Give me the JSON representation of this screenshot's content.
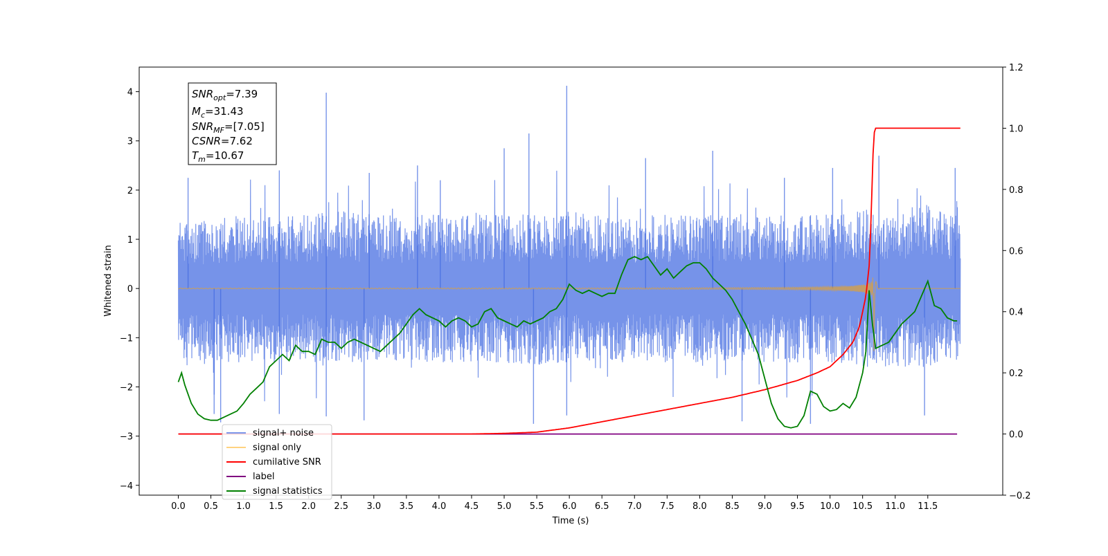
{
  "chart_data": {
    "type": "line",
    "xlabel": "Time (s)",
    "ylabel": "Whitened strain",
    "xlim": [
      -0.6,
      12.65
    ],
    "ylim": [
      -4.2,
      4.5
    ],
    "y2lim": [
      -0.2,
      1.2
    ],
    "x_ticks": [
      "0.0",
      "0.5",
      "1.0",
      "1.5",
      "2.0",
      "2.5",
      "3.0",
      "3.5",
      "4.0",
      "4.5",
      "5.0",
      "5.5",
      "6.0",
      "6.5",
      "7.0",
      "7.5",
      "8.0",
      "8.5",
      "9.0",
      "9.5",
      "10.0",
      "10.5",
      "11.0",
      "11.5"
    ],
    "y_ticks": [
      "4",
      "3",
      "2",
      "1",
      "0",
      "−1",
      "−2",
      "−3",
      "−4"
    ],
    "y2_ticks": [
      "1.2",
      "1.0",
      "0.8",
      "0.6",
      "0.4",
      "0.2",
      "0.0",
      "−0.2"
    ],
    "legend_position": "lower-left",
    "annotation": {
      "snr_opt": {
        "base": "SNR",
        "sub": "opt",
        "value": "=7.39"
      },
      "mc": {
        "base": "M",
        "sub": "c",
        "value": "=31.43"
      },
      "snr_mf": {
        "base": "SNR",
        "sub": "MF",
        "value": "=[7.05]"
      },
      "csnr": {
        "base": "CSNR",
        "value": "=7.62"
      },
      "tm": {
        "base": "T",
        "sub": "m",
        "value": "=10.67"
      }
    },
    "series": [
      {
        "name": "signal+ noise",
        "color": "#4169e1",
        "axis": "left",
        "x_range": [
          0.0,
          12.0
        ],
        "envelope_upper": [
          1.4,
          1.4,
          1.5,
          1.5,
          1.5,
          1.6,
          1.5,
          1.5,
          1.5,
          1.5,
          1.5,
          1.6,
          1.6,
          1.5,
          1.5,
          1.5,
          1.5,
          1.5,
          1.5,
          1.5,
          1.5,
          1.6,
          1.6,
          1.7,
          1.5
        ],
        "envelope_lower": [
          -1.4,
          -1.5,
          -1.5,
          -1.5,
          -1.5,
          -1.5,
          -1.5,
          -1.5,
          -1.5,
          -1.5,
          -1.5,
          -1.6,
          -1.5,
          -1.5,
          -1.5,
          -1.5,
          -1.5,
          -1.5,
          -1.5,
          -1.5,
          -1.5,
          -1.6,
          -1.6,
          -1.6,
          -1.5
        ],
        "peaks": [
          [
            0.15,
            2.25
          ],
          [
            1.55,
            2.4
          ],
          [
            2.27,
            3.98
          ],
          [
            2.93,
            2.35
          ],
          [
            3.67,
            2.5
          ],
          [
            4.02,
            2.2
          ],
          [
            5.0,
            2.85
          ],
          [
            5.38,
            3.15
          ],
          [
            5.96,
            4.12
          ],
          [
            7.17,
            2.65
          ],
          [
            8.2,
            2.8
          ],
          [
            9.3,
            2.25
          ],
          [
            10.04,
            2.45
          ],
          [
            10.75,
            2.7
          ],
          [
            11.92,
            2.45
          ],
          [
            0.55,
            -2.55
          ],
          [
            1.55,
            -2.55
          ],
          [
            2.27,
            -2.6
          ],
          [
            2.85,
            -2.68
          ],
          [
            5.45,
            -2.75
          ],
          [
            5.96,
            -2.58
          ],
          [
            8.65,
            -2.7
          ],
          [
            9.7,
            -2.75
          ],
          [
            11.45,
            -2.58
          ],
          [
            0.65,
            -2.72
          ]
        ]
      },
      {
        "name": "signal only",
        "color": "#ffa500",
        "axis": "left",
        "x_range": [
          0.0,
          12.0
        ],
        "chirp_merger_time": 10.67,
        "chirp_peak_amplitude": 1.45
      },
      {
        "name": "cumilative SNR",
        "color": "#ff0000",
        "axis": "right",
        "x": [
          0.0,
          1.0,
          2.0,
          3.0,
          4.0,
          4.5,
          5.0,
          5.5,
          6.0,
          6.5,
          7.0,
          7.5,
          8.0,
          8.5,
          9.0,
          9.5,
          9.8,
          10.0,
          10.2,
          10.35,
          10.45,
          10.55,
          10.6,
          10.63,
          10.65,
          10.67,
          10.7,
          12.0
        ],
        "values": [
          0.0,
          0.0,
          0.0,
          0.0,
          0.0,
          0.0,
          0.002,
          0.006,
          0.02,
          0.04,
          0.06,
          0.08,
          0.1,
          0.12,
          0.145,
          0.175,
          0.2,
          0.22,
          0.26,
          0.3,
          0.35,
          0.45,
          0.55,
          0.7,
          0.85,
          0.98,
          1.0,
          1.0
        ]
      },
      {
        "name": "label",
        "color": "#800080",
        "axis": "right",
        "x": [
          0.0,
          11.95
        ],
        "values": [
          0.0,
          0.0
        ]
      },
      {
        "name": "signal statistics",
        "color": "#008000",
        "axis": "right",
        "x": [
          0.0,
          0.05,
          0.1,
          0.2,
          0.3,
          0.4,
          0.5,
          0.6,
          0.7,
          0.8,
          0.9,
          1.0,
          1.1,
          1.2,
          1.3,
          1.4,
          1.5,
          1.6,
          1.7,
          1.8,
          1.9,
          2.0,
          2.1,
          2.2,
          2.3,
          2.4,
          2.5,
          2.6,
          2.7,
          2.8,
          2.9,
          3.0,
          3.1,
          3.2,
          3.3,
          3.4,
          3.5,
          3.6,
          3.7,
          3.8,
          3.9,
          4.0,
          4.1,
          4.2,
          4.3,
          4.4,
          4.5,
          4.6,
          4.7,
          4.8,
          4.9,
          5.0,
          5.1,
          5.2,
          5.3,
          5.4,
          5.5,
          5.6,
          5.7,
          5.8,
          5.9,
          6.0,
          6.1,
          6.2,
          6.3,
          6.4,
          6.5,
          6.6,
          6.7,
          6.8,
          6.9,
          7.0,
          7.1,
          7.2,
          7.3,
          7.4,
          7.5,
          7.6,
          7.7,
          7.8,
          7.9,
          8.0,
          8.1,
          8.2,
          8.3,
          8.4,
          8.5,
          8.6,
          8.7,
          8.8,
          8.9,
          9.0,
          9.1,
          9.2,
          9.3,
          9.4,
          9.5,
          9.6,
          9.7,
          9.8,
          9.9,
          10.0,
          10.1,
          10.2,
          10.3,
          10.4,
          10.5,
          10.55,
          10.6,
          10.65,
          10.7,
          10.8,
          10.9,
          11.0,
          11.1,
          11.2,
          11.3,
          11.4,
          11.5,
          11.6,
          11.7,
          11.8,
          11.9,
          11.95
        ],
        "values": [
          0.17,
          0.2,
          0.16,
          0.1,
          0.065,
          0.05,
          0.045,
          0.045,
          0.055,
          0.065,
          0.075,
          0.1,
          0.13,
          0.15,
          0.17,
          0.22,
          0.24,
          0.26,
          0.24,
          0.29,
          0.27,
          0.27,
          0.26,
          0.31,
          0.3,
          0.3,
          0.28,
          0.3,
          0.31,
          0.3,
          0.29,
          0.28,
          0.27,
          0.29,
          0.31,
          0.33,
          0.36,
          0.39,
          0.41,
          0.39,
          0.38,
          0.37,
          0.35,
          0.37,
          0.38,
          0.37,
          0.35,
          0.36,
          0.4,
          0.41,
          0.38,
          0.37,
          0.36,
          0.35,
          0.37,
          0.36,
          0.37,
          0.38,
          0.4,
          0.41,
          0.44,
          0.49,
          0.47,
          0.46,
          0.47,
          0.46,
          0.45,
          0.46,
          0.46,
          0.52,
          0.57,
          0.58,
          0.57,
          0.58,
          0.55,
          0.52,
          0.54,
          0.51,
          0.53,
          0.55,
          0.56,
          0.56,
          0.54,
          0.51,
          0.49,
          0.47,
          0.44,
          0.4,
          0.36,
          0.31,
          0.26,
          0.18,
          0.1,
          0.05,
          0.025,
          0.02,
          0.025,
          0.06,
          0.14,
          0.13,
          0.09,
          0.075,
          0.08,
          0.1,
          0.085,
          0.12,
          0.2,
          0.27,
          0.47,
          0.36,
          0.28,
          0.29,
          0.3,
          0.33,
          0.36,
          0.38,
          0.4,
          0.45,
          0.5,
          0.42,
          0.41,
          0.38,
          0.37,
          0.37
        ]
      }
    ]
  }
}
